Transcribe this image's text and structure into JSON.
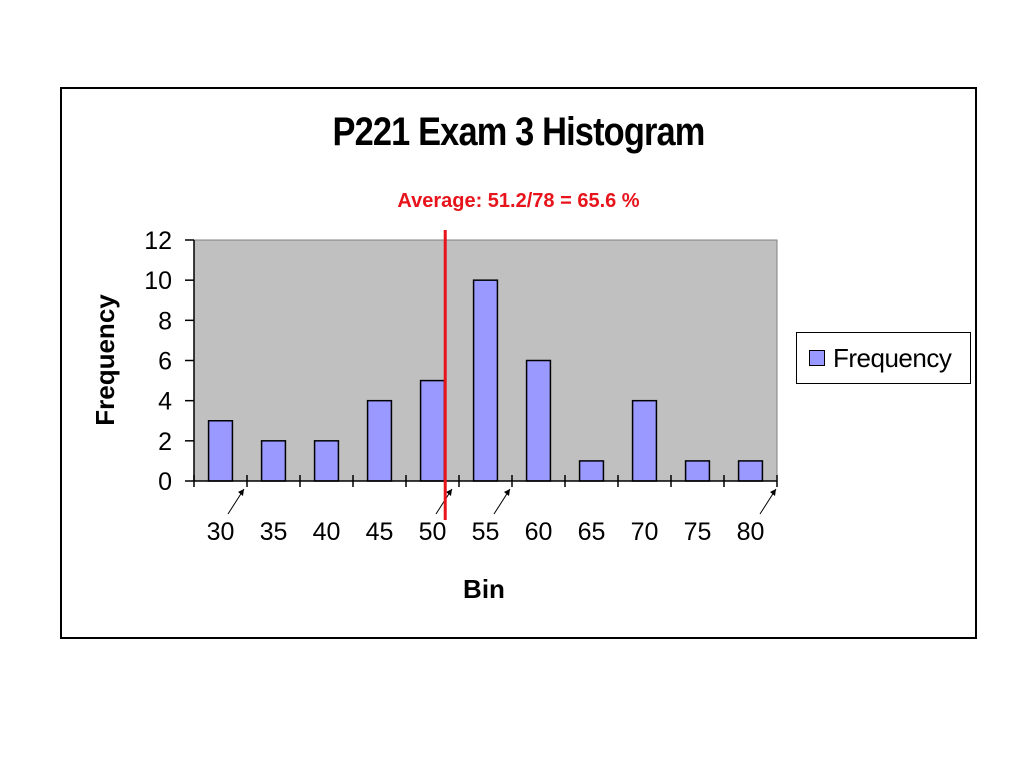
{
  "chart_data": {
    "type": "bar",
    "title": "P221 Exam 3 Histogram",
    "subtitle": "Average:  51.2/78 = 65.6 %",
    "xlabel": "Bin",
    "ylabel": "Frequency",
    "categories": [
      "30",
      "35",
      "40",
      "45",
      "50",
      "55",
      "60",
      "65",
      "70",
      "75",
      "80"
    ],
    "series": [
      {
        "name": "Frequency",
        "values": [
          3,
          2,
          2,
          4,
          5,
          10,
          6,
          1,
          4,
          1,
          1
        ]
      }
    ],
    "ylim": [
      0,
      12
    ],
    "yticks": [
      "0",
      "2",
      "4",
      "6",
      "8",
      "10",
      "12"
    ],
    "average_marker_x": 51.2,
    "legend_position": "right",
    "grid": false,
    "colors": {
      "bar_fill": "#9999ff",
      "plot_background": "#c0c0c0",
      "average_line": "#e8141c",
      "subtitle": "#e8141c"
    }
  }
}
